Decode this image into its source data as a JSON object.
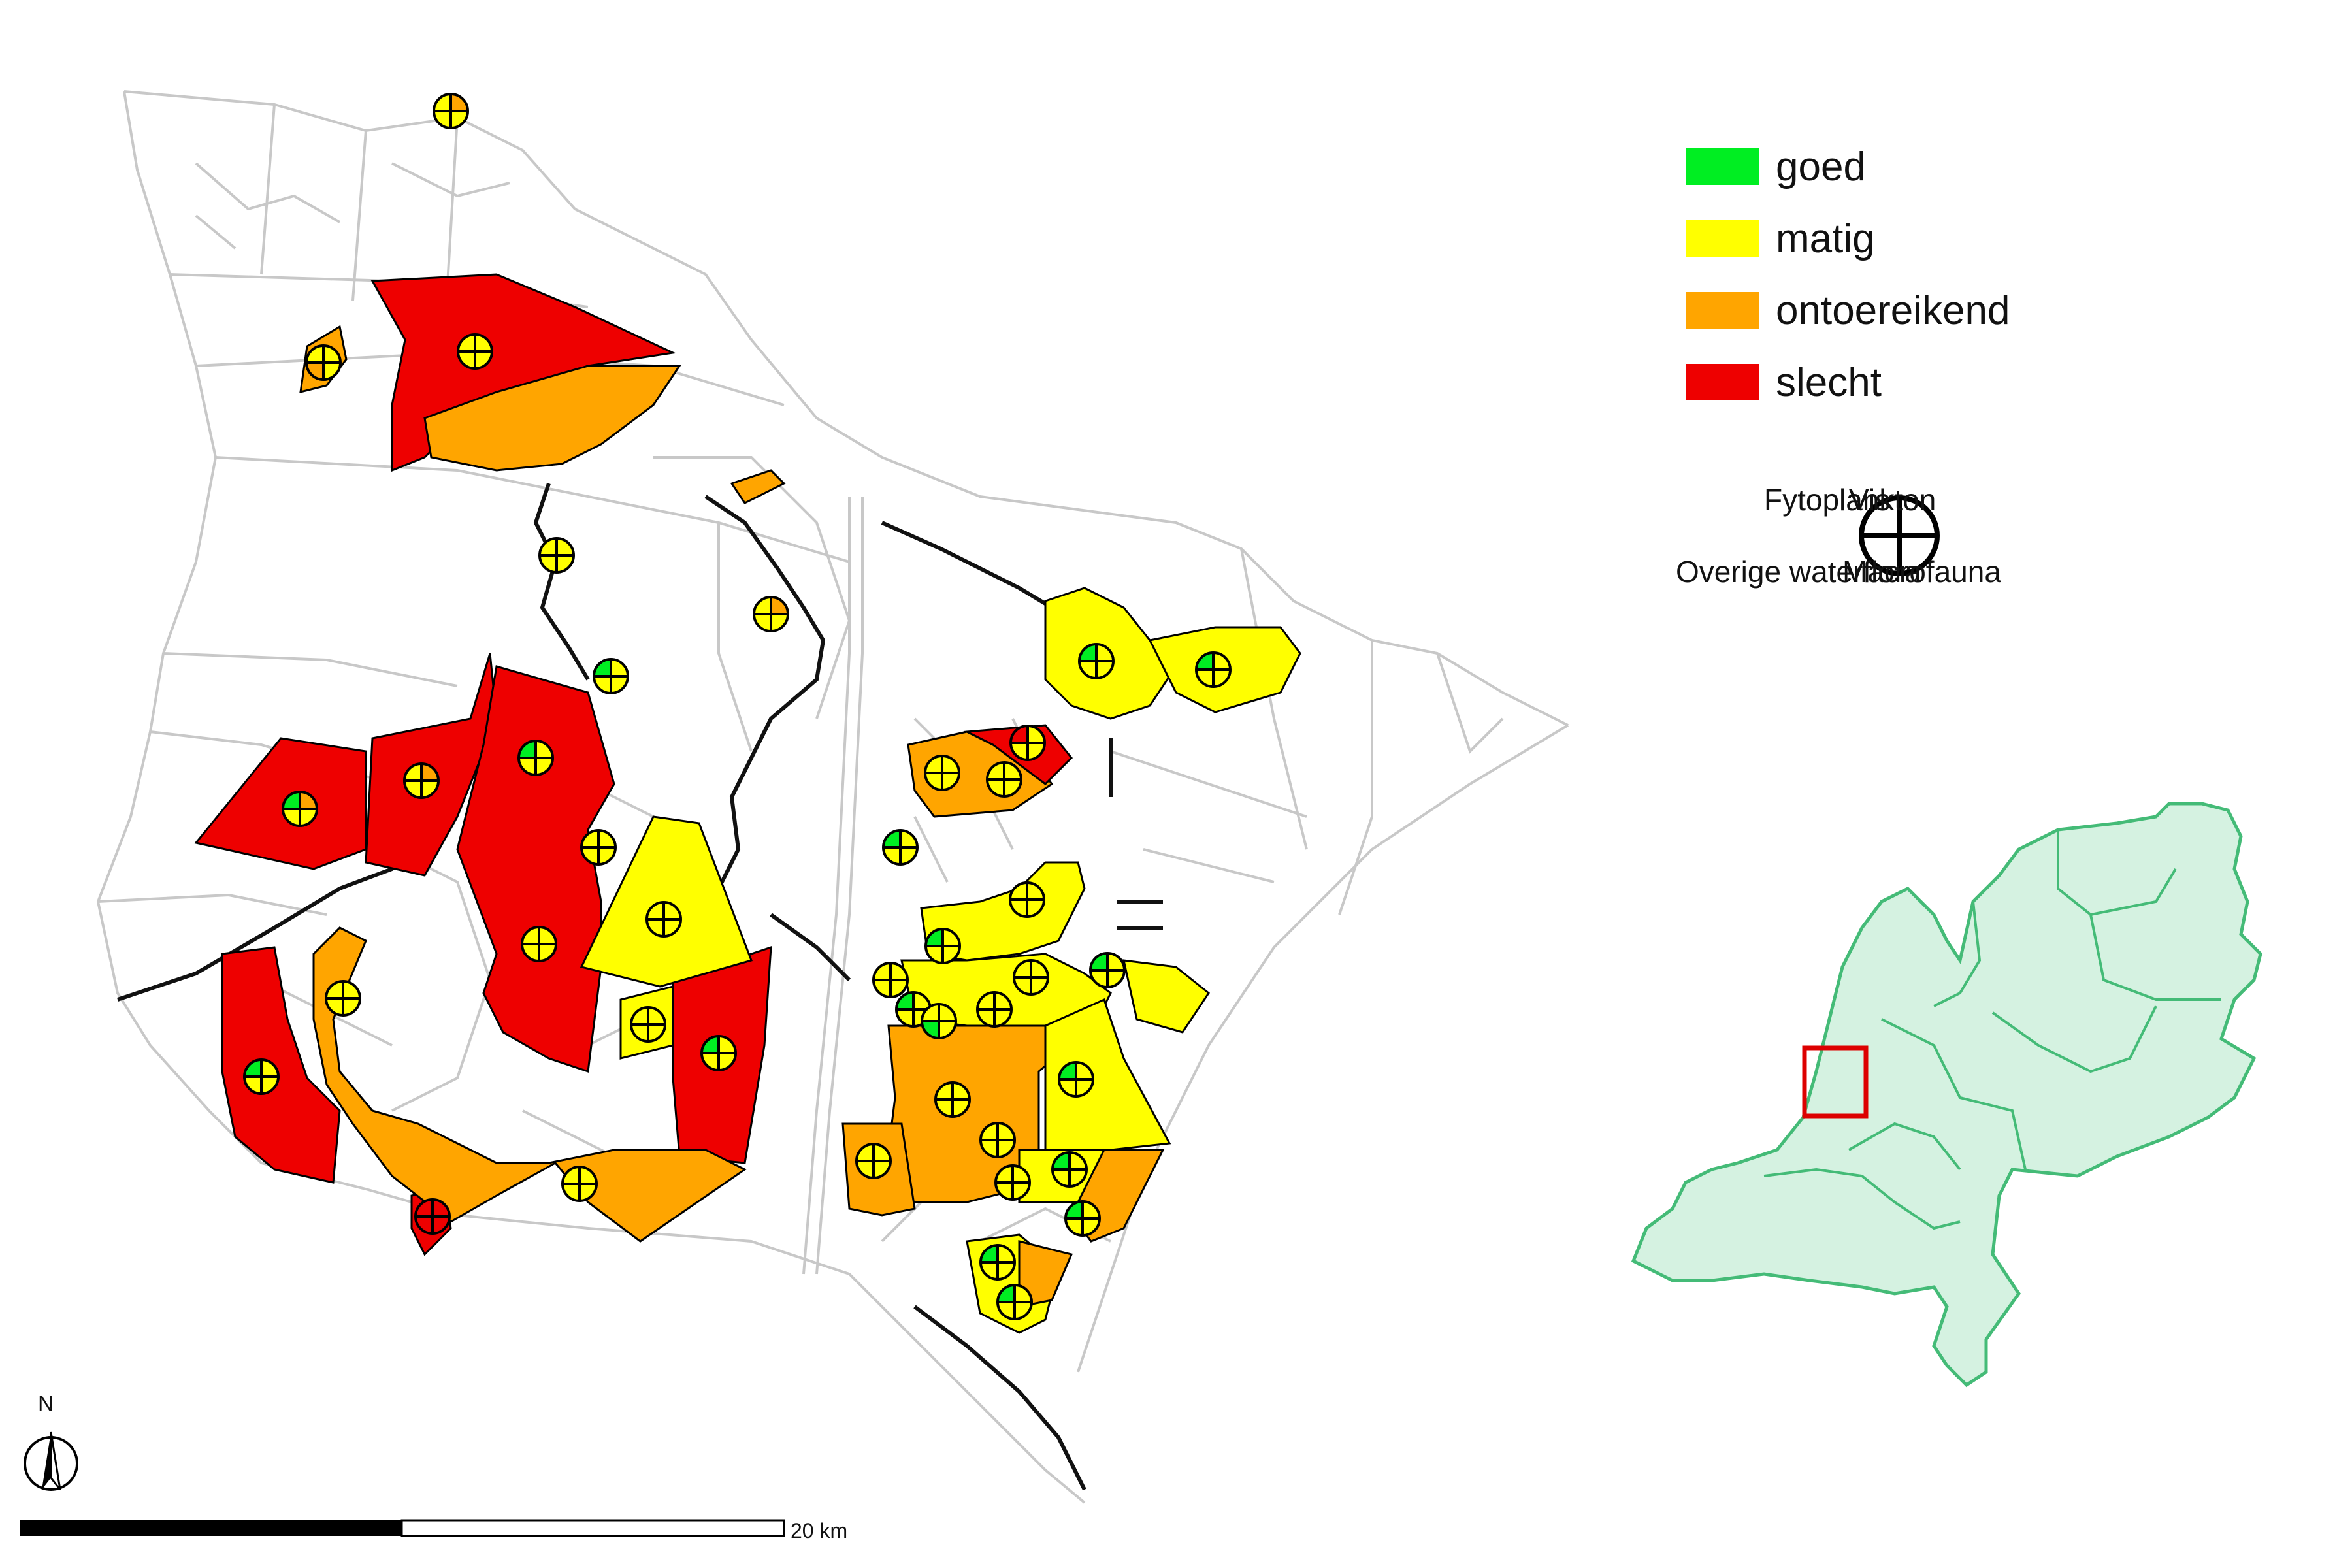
{
  "legend": {
    "items": [
      {
        "label": "goed",
        "color": "#00ee22"
      },
      {
        "label": "matig",
        "color": "#ffff00"
      },
      {
        "label": "ontoereikend",
        "color": "#ffa500"
      },
      {
        "label": "slecht",
        "color": "#ee0000"
      }
    ]
  },
  "symbol_legend": {
    "top_left": "Fytoplankton",
    "top_right": "Vis",
    "bottom_left": "Overige waterflora",
    "bottom_right": "Macrofauna"
  },
  "scale_bar": {
    "label": "20 km"
  },
  "north_arrow": {
    "label": "N"
  },
  "inset": {
    "fill_color": "#d5f2e1",
    "stroke_color": "#44bb77",
    "box_color": "#dd0000"
  }
}
